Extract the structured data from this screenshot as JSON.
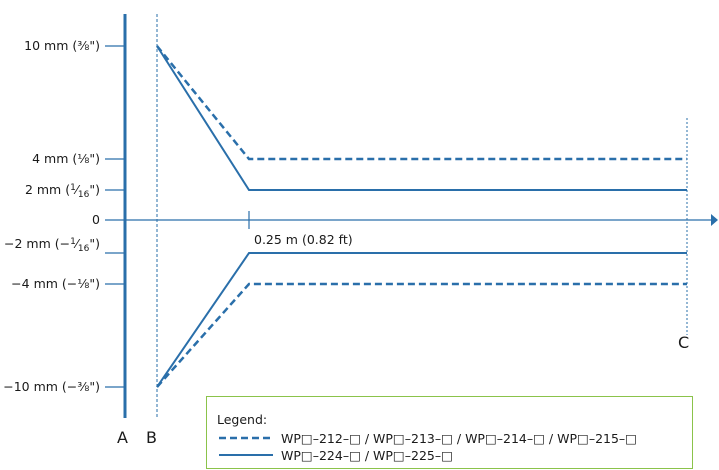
{
  "colors": {
    "line": "#2a6faa",
    "axis": "#1a1a1a",
    "legend_border": "#8bc34a"
  },
  "y_labels": {
    "p10": {
      "text": "10 mm (⅜\")",
      "parts": [
        "10 mm (⅜\")"
      ]
    },
    "p4": {
      "text": "4 mm (⅛\")",
      "parts": [
        "4 mm (⅛\")"
      ]
    },
    "p2": {
      "text": "2 mm (1/16\")",
      "parts": [
        "2 mm (",
        "1",
        "⁄",
        "16",
        "\")"
      ]
    },
    "zero": {
      "text": "0",
      "parts": [
        "0"
      ]
    },
    "m2": {
      "text": "−2 mm (−1/16\")",
      "parts": [
        "−2 mm (−",
        "1",
        "⁄",
        "16",
        "\")"
      ]
    },
    "m4": {
      "text": "−4 mm (−⅛\")",
      "parts": [
        "−4 mm (−⅛\")"
      ]
    },
    "m10": {
      "text": "−10 mm (−⅜\")",
      "parts": [
        "−10 mm (−⅜\")"
      ]
    }
  },
  "x_label": "0.25 m (0.82 ft)",
  "markers": {
    "a": "A",
    "b": "B",
    "c": "C"
  },
  "legend": {
    "title": "Legend:",
    "dashed_label": "WP□–212–□ / WP□–213–□ / WP□–214–□ / WP□–215–□",
    "solid_label": "WP□–224–□ / WP□–225–□"
  }
}
